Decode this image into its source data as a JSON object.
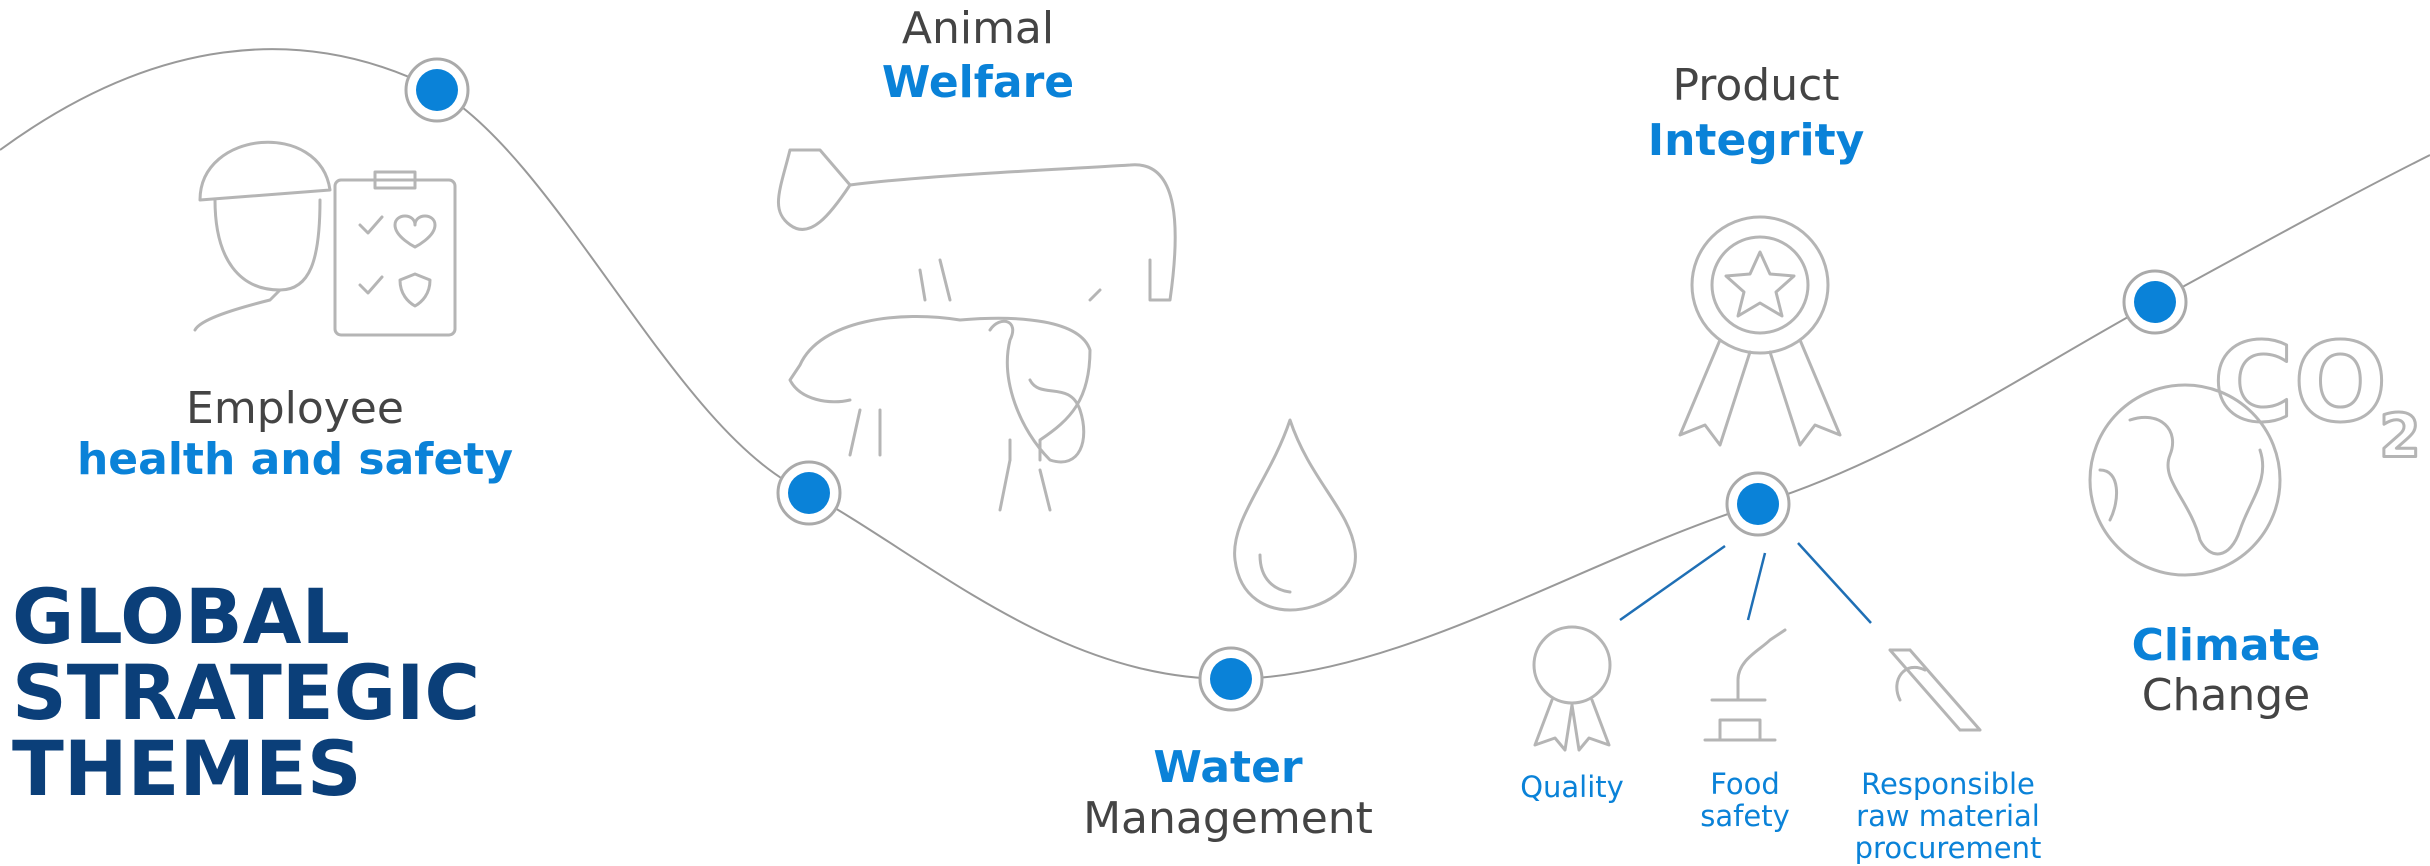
{
  "title": {
    "lines": [
      "GLOBAL",
      "STRATEGIC",
      "THEMES"
    ]
  },
  "themes": [
    {
      "line1": "Employee",
      "line2": "health and safety"
    },
    {
      "line1": "Animal",
      "line2": "Welfare"
    },
    {
      "line1": "Water",
      "line2": "Management"
    },
    {
      "line1": "Product",
      "line2": "Integrity"
    },
    {
      "line1": "Climate",
      "line2": "Change"
    }
  ],
  "sub_items": [
    {
      "lines": [
        "Quality"
      ]
    },
    {
      "lines": [
        "Food",
        "safety"
      ]
    },
    {
      "lines": [
        "Responsible",
        "raw material",
        "procurement"
      ]
    }
  ]
}
